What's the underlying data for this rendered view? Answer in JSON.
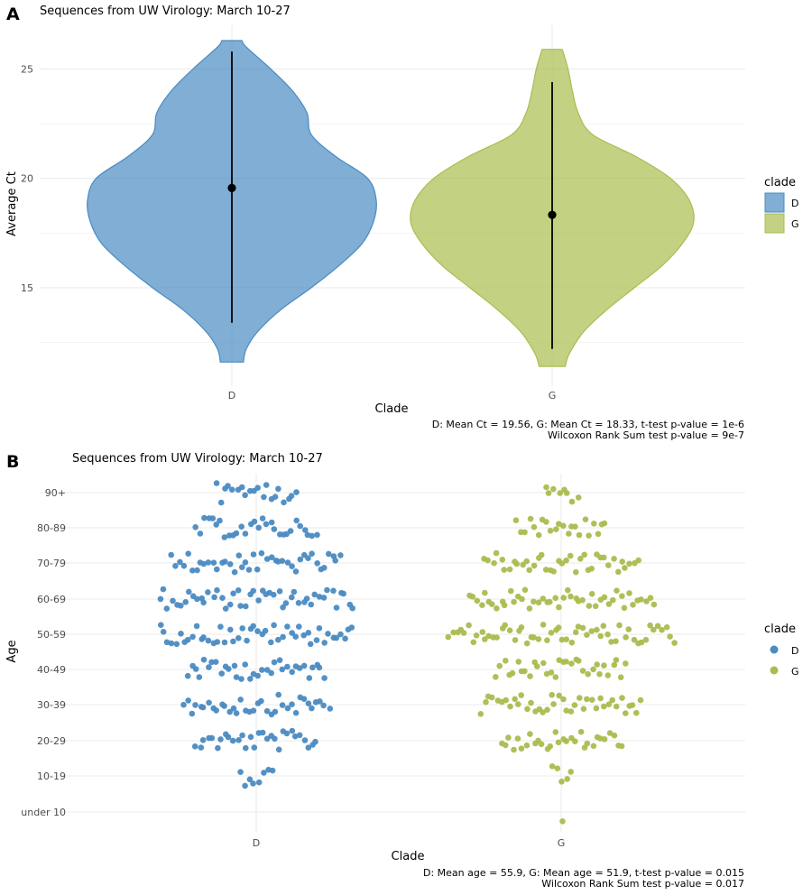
{
  "colors": {
    "D": "#4a8bc2",
    "G": "#a9bd4f"
  },
  "chart_data": [
    {
      "panel": "A",
      "type": "violin",
      "title": "Sequences from UW Virology: March 10-27",
      "xlabel": "Clade",
      "ylabel": "Average Ct",
      "categories": [
        "D",
        "G"
      ],
      "ylim": [
        10.5,
        27
      ],
      "yticks": [
        15,
        20,
        25
      ],
      "grid": true,
      "legend": {
        "title": "clade",
        "entries": [
          "D",
          "G"
        ],
        "placement": "right"
      },
      "series": [
        {
          "name": "D",
          "min": 11.6,
          "max": 26.3,
          "mean": 19.56,
          "whisker_low": 13.4,
          "whisker_high": 25.8,
          "profile": [
            [
              11.6,
              0.08
            ],
            [
              12.2,
              0.1
            ],
            [
              13.0,
              0.18
            ],
            [
              14.0,
              0.34
            ],
            [
              15.0,
              0.55
            ],
            [
              16.0,
              0.74
            ],
            [
              17.0,
              0.9
            ],
            [
              18.0,
              0.98
            ],
            [
              19.0,
              1.0
            ],
            [
              20.0,
              0.94
            ],
            [
              21.0,
              0.72
            ],
            [
              22.0,
              0.55
            ],
            [
              23.0,
              0.52
            ],
            [
              24.0,
              0.42
            ],
            [
              25.0,
              0.27
            ],
            [
              26.0,
              0.1
            ],
            [
              26.3,
              0.07
            ]
          ]
        },
        {
          "name": "G",
          "min": 11.4,
          "max": 25.9,
          "mean": 18.33,
          "whisker_low": 12.2,
          "whisker_high": 24.4,
          "profile": [
            [
              11.4,
              0.09
            ],
            [
              12.0,
              0.12
            ],
            [
              13.0,
              0.22
            ],
            [
              14.0,
              0.38
            ],
            [
              15.0,
              0.57
            ],
            [
              16.0,
              0.76
            ],
            [
              17.0,
              0.9
            ],
            [
              18.0,
              0.98
            ],
            [
              19.0,
              0.95
            ],
            [
              20.0,
              0.82
            ],
            [
              21.0,
              0.58
            ],
            [
              22.0,
              0.28
            ],
            [
              23.0,
              0.18
            ],
            [
              24.0,
              0.14
            ],
            [
              25.0,
              0.11
            ],
            [
              25.9,
              0.07
            ]
          ]
        }
      ],
      "caption": [
        "D: Mean Ct = 19.56,  G: Mean Ct = 18.33,  t-test p-value = 1e-6",
        "Wilcoxon Rank Sum test p-value = 9e-7"
      ]
    },
    {
      "panel": "B",
      "type": "scatter",
      "subtype": "beeswarm",
      "title": "Sequences from UW Virology: March 10-27",
      "xlabel": "Clade",
      "ylabel": "Age",
      "categories": [
        "D",
        "G"
      ],
      "age_groups": [
        "under 10",
        "10-19",
        "20-29",
        "30-39",
        "40-49",
        "50-59",
        "60-69",
        "70-79",
        "80-89",
        "90+"
      ],
      "grid": true,
      "legend": {
        "title": "clade",
        "entries": [
          "D",
          "G"
        ],
        "placement": "right"
      },
      "counts": {
        "D": [
          0,
          8,
          30,
          36,
          34,
          48,
          48,
          42,
          30,
          20
        ],
        "G": [
          1,
          5,
          30,
          40,
          32,
          56,
          46,
          38,
          22,
          8
        ]
      },
      "caption": [
        "D: Mean age = 55.9,  G: Mean age = 51.9,  t-test p-value = 0.015",
        "Wilcoxon Rank Sum test p-value = 0.017"
      ]
    }
  ]
}
